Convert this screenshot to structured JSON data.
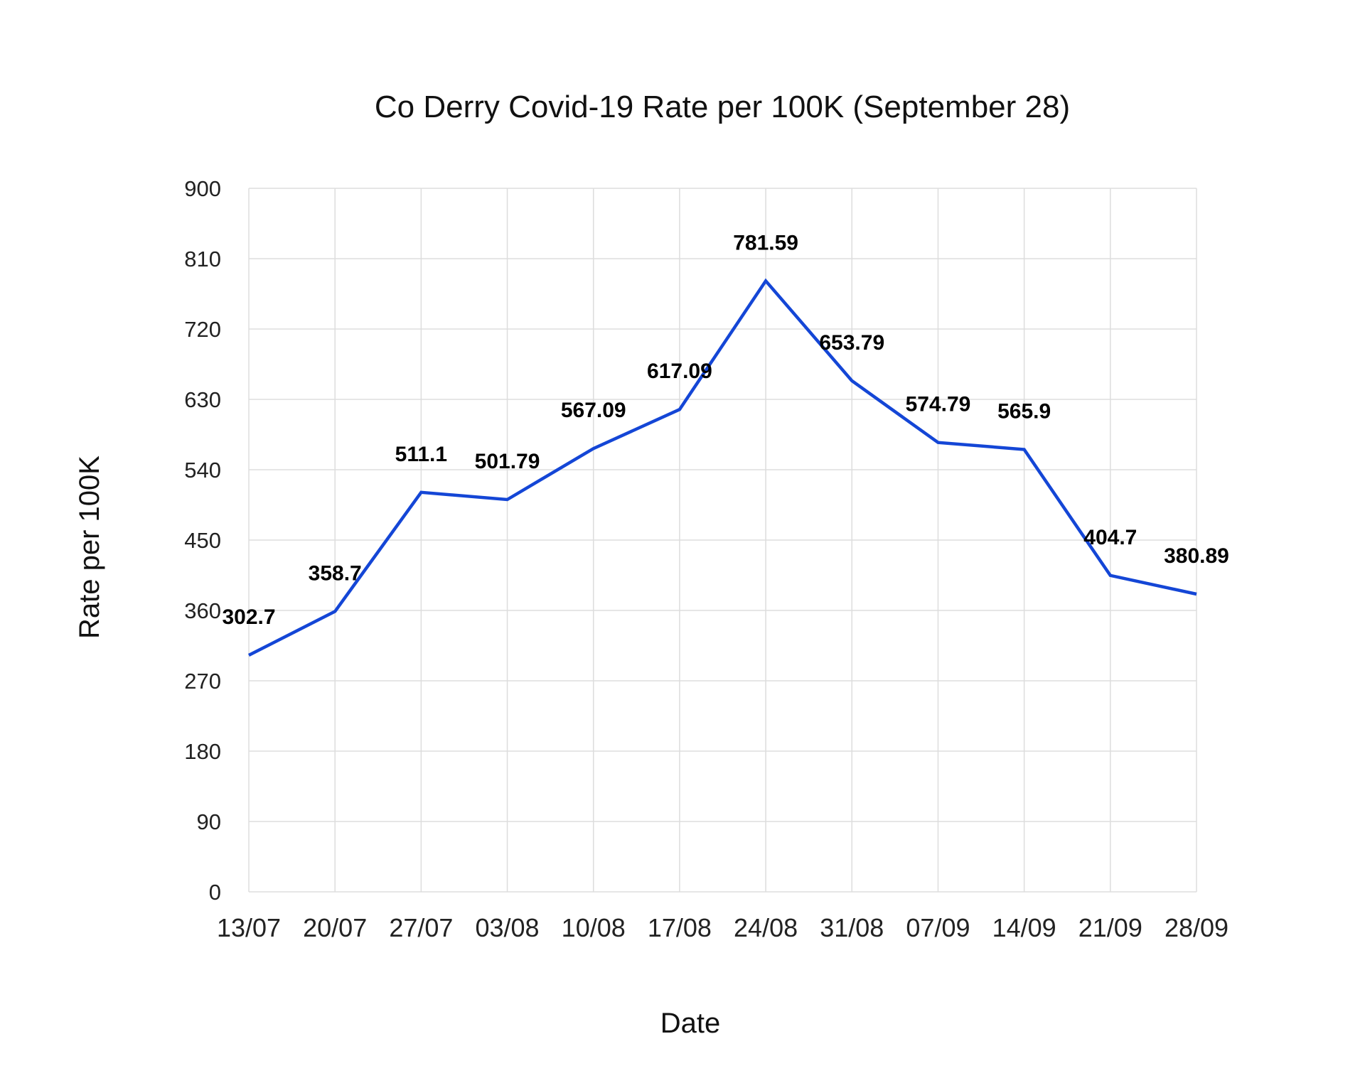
{
  "chart_data": {
    "type": "line",
    "title": "Co Derry Covid-19 Rate per 100K (September 28)",
    "xlabel": "Date",
    "ylabel": "Rate per 100K",
    "categories": [
      "13/07",
      "20/07",
      "27/07",
      "03/08",
      "10/08",
      "17/08",
      "24/08",
      "31/08",
      "07/09",
      "14/09",
      "21/09",
      "28/09"
    ],
    "series": [
      {
        "values": [
          302.7,
          358.7,
          511.1,
          501.79,
          567.09,
          617.09,
          781.59,
          653.79,
          574.79,
          565.9,
          404.7,
          380.89
        ],
        "labels": [
          "302.7",
          "358.7",
          "511.1",
          "501.79",
          "567.09",
          "617.09",
          "781.59",
          "653.79",
          "574.79",
          "565.9",
          "404.7",
          "380.89"
        ],
        "color": "#1446d6"
      }
    ],
    "ylim": [
      0,
      900
    ],
    "yticks": [
      "0",
      "90",
      "180",
      "270",
      "360",
      "450",
      "540",
      "630",
      "720",
      "810",
      "900"
    ],
    "grid": true,
    "legend": "none"
  }
}
